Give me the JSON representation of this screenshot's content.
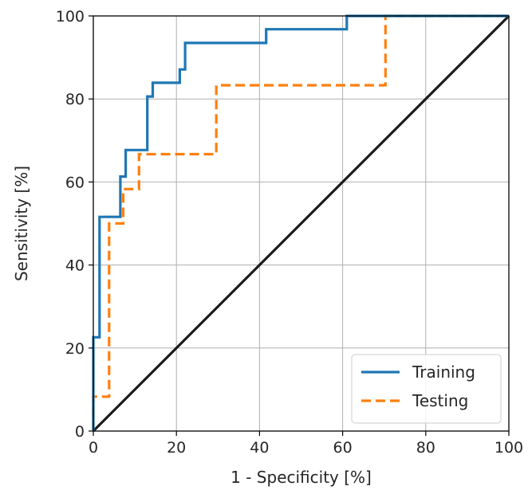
{
  "chart_data": {
    "type": "line",
    "title": "",
    "xlabel": "1 - Specificity [%]",
    "ylabel": "Sensitivity [%]",
    "xlim": [
      0,
      100
    ],
    "ylim": [
      0,
      100
    ],
    "xticks": [
      0,
      20,
      40,
      60,
      80,
      100
    ],
    "yticks": [
      0,
      20,
      40,
      60,
      80,
      100
    ],
    "xtick_labels": [
      "0",
      "20",
      "40",
      "60",
      "80",
      "100"
    ],
    "ytick_labels": [
      "0",
      "20",
      "40",
      "60",
      "80",
      "100"
    ],
    "grid": true,
    "legend_position": "bottom-right",
    "series": [
      {
        "name": "Training",
        "color": "#1f77b4",
        "style": "solid",
        "x": [
          0,
          0,
          1.5,
          1.5,
          6.5,
          6.5,
          7.8,
          7.8,
          13,
          13,
          14.3,
          14.3,
          20.8,
          20.8,
          22.1,
          22.1,
          41.6,
          41.6,
          61,
          61,
          100
        ],
        "y": [
          0,
          22.6,
          22.6,
          51.6,
          51.6,
          61.3,
          61.3,
          67.7,
          67.7,
          80.6,
          80.6,
          83.9,
          83.9,
          87.1,
          87.1,
          93.5,
          93.5,
          96.8,
          96.8,
          100,
          100
        ]
      },
      {
        "name": "Testing",
        "color": "#ff7f0e",
        "style": "dashed",
        "x": [
          0,
          0,
          3.8,
          3.8,
          7.2,
          7.2,
          11,
          11,
          29.6,
          29.6,
          70.3,
          70.3,
          100
        ],
        "y": [
          0,
          8.3,
          8.3,
          50,
          50,
          58.3,
          58.3,
          66.7,
          66.7,
          83.3,
          83.3,
          100,
          100
        ]
      },
      {
        "name": "",
        "color": "#1a1a1a",
        "style": "solid",
        "x": [
          0,
          100
        ],
        "y": [
          0,
          100
        ]
      }
    ]
  }
}
